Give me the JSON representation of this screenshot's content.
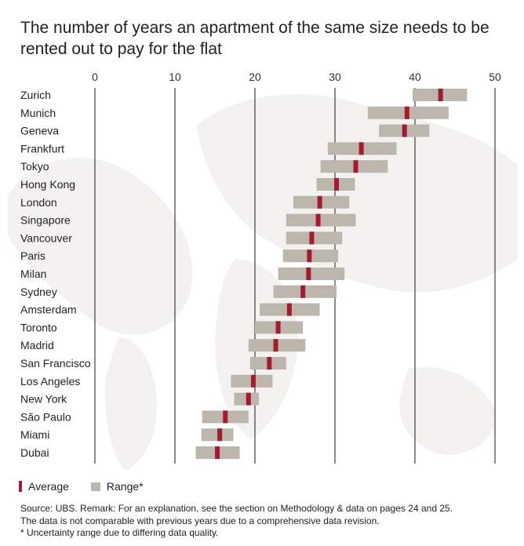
{
  "title": "The number of years an apartment of the same size needs to be rented out to pay for the flat",
  "chart_data": {
    "type": "range-bar",
    "title": "The number of years an apartment of the same size needs to be rented out to pay for the flat",
    "xlim": [
      0,
      50
    ],
    "xticks": [
      0,
      10,
      20,
      30,
      40,
      50
    ],
    "grid": true,
    "legend_position": "bottom-left",
    "colors": {
      "average": "#a6192e",
      "range": "#bdb6ad"
    },
    "categories": [
      "Zurich",
      "Munich",
      "Geneva",
      "Frankfurt",
      "Tokyo",
      "Hong Kong",
      "London",
      "Singapore",
      "Vancouver",
      "Paris",
      "Milan",
      "Sydney",
      "Amsterdam",
      "Toronto",
      "Madrid",
      "San Francisco",
      "Los Angeles",
      "New York",
      "São Paulo",
      "Miami",
      "Dubai"
    ],
    "series": [
      {
        "name": "Range*",
        "low": [
          39.7,
          34.1,
          35.5,
          29.1,
          28.2,
          27.7,
          24.8,
          23.9,
          23.9,
          23.5,
          22.9,
          22.3,
          20.6,
          20.0,
          19.2,
          19.4,
          17.0,
          17.4,
          13.4,
          13.3,
          12.6
        ],
        "high": [
          46.5,
          44.2,
          41.8,
          37.7,
          36.6,
          32.5,
          31.8,
          32.6,
          30.9,
          30.4,
          31.2,
          30.2,
          28.1,
          26.0,
          26.3,
          23.9,
          22.2,
          20.5,
          19.2,
          17.3,
          18.1
        ]
      },
      {
        "name": "Average",
        "values": [
          43.2,
          39.0,
          38.7,
          33.3,
          32.6,
          30.2,
          28.1,
          27.9,
          27.1,
          26.8,
          26.7,
          26.0,
          24.3,
          22.9,
          22.6,
          21.8,
          19.8,
          19.2,
          16.3,
          15.6,
          15.3
        ]
      }
    ]
  },
  "legend": {
    "average": "Average",
    "range": "Range*"
  },
  "source": {
    "line1": "Source: UBS. Remark: For an explanation, see the section on Methodology & data on pages 24 and 25.",
    "line2": "The data is not comparable with previous years due to a comprehensive data revision.",
    "line3": "* Uncertainty range due to differing data quality."
  }
}
